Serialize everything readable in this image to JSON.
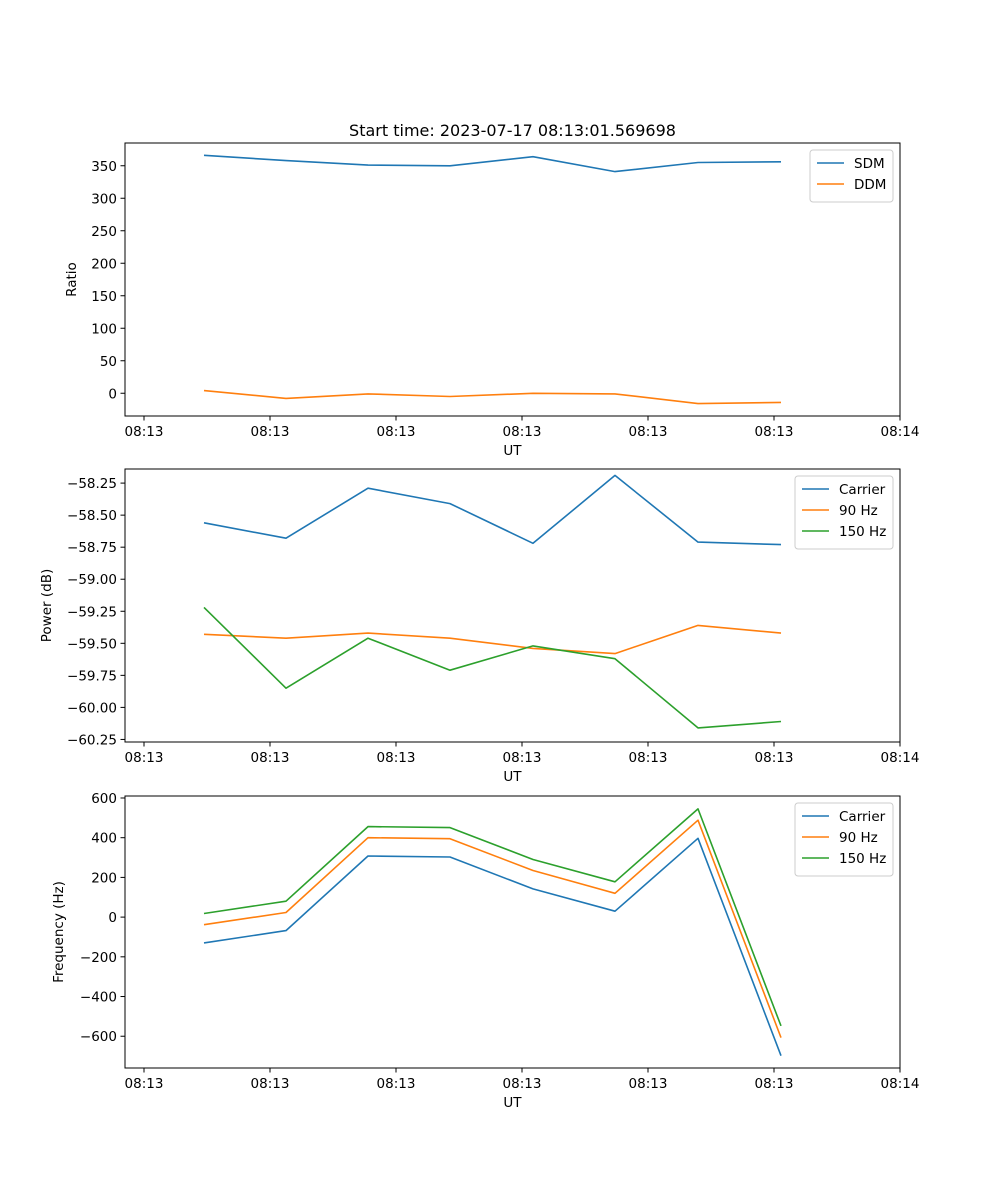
{
  "figure_title": "Start time: 2023-07-17 08:13:01.569698",
  "chart_data": [
    {
      "type": "line",
      "title": "Start time: 2023-07-17 08:13:01.569698",
      "xlabel": "UT",
      "ylabel": "Ratio",
      "x_tick_labels": [
        "08:13",
        "08:13",
        "08:13",
        "08:13",
        "08:13",
        "08:13",
        "08:14"
      ],
      "y_ticks": [
        0,
        50,
        100,
        150,
        200,
        250,
        300,
        350
      ],
      "y_tick_labels": [
        "0",
        "50",
        "100",
        "150",
        "200",
        "250",
        "300",
        "350"
      ],
      "ylim": [
        -35,
        385
      ],
      "legend": "top-right",
      "series": [
        {
          "name": "SDM",
          "color": "#1f77b4",
          "values": [
            366,
            358,
            351,
            350,
            364,
            341,
            355,
            356
          ]
        },
        {
          "name": "DDM",
          "color": "#ff7f0e",
          "values": [
            4,
            -8,
            -1,
            -5,
            0,
            -1,
            -16,
            -14
          ]
        }
      ]
    },
    {
      "type": "line",
      "title": "",
      "xlabel": "UT",
      "ylabel": "Power (dB)",
      "x_tick_labels": [
        "08:13",
        "08:13",
        "08:13",
        "08:13",
        "08:13",
        "08:13",
        "08:14"
      ],
      "y_ticks": [
        -58.25,
        -58.5,
        -58.75,
        -59.0,
        -59.25,
        -59.5,
        -59.75,
        -60.0,
        -60.25
      ],
      "y_tick_labels": [
        "−58.25",
        "−58.50",
        "−58.75",
        "−59.00",
        "−59.25",
        "−59.50",
        "−59.75",
        "−60.00",
        "−60.25"
      ],
      "ylim": [
        -60.27,
        -58.14
      ],
      "legend": "top-right",
      "series": [
        {
          "name": "Carrier",
          "color": "#1f77b4",
          "values": [
            -58.56,
            -58.68,
            -58.29,
            -58.41,
            -58.72,
            -58.19,
            -58.71,
            -58.73
          ]
        },
        {
          "name": "90 Hz",
          "color": "#ff7f0e",
          "values": [
            -59.43,
            -59.46,
            -59.42,
            -59.46,
            -59.54,
            -59.58,
            -59.36,
            -59.42
          ]
        },
        {
          "name": "150 Hz",
          "color": "#2ca02c",
          "values": [
            -59.22,
            -59.85,
            -59.46,
            -59.71,
            -59.52,
            -59.62,
            -60.16,
            -60.11
          ]
        }
      ]
    },
    {
      "type": "line",
      "title": "",
      "xlabel": "UT",
      "ylabel": "Frequency (Hz)",
      "x_tick_labels": [
        "08:13",
        "08:13",
        "08:13",
        "08:13",
        "08:13",
        "08:13",
        "08:14"
      ],
      "y_ticks": [
        -600,
        -400,
        -200,
        0,
        200,
        400,
        600
      ],
      "y_tick_labels": [
        "−600",
        "−400",
        "−200",
        "0",
        "200",
        "400",
        "600"
      ],
      "ylim": [
        -760,
        610
      ],
      "legend": "top-right",
      "series": [
        {
          "name": "Carrier",
          "color": "#1f77b4",
          "values": [
            -130,
            -68,
            308,
            303,
            142,
            30,
            397,
            -698
          ]
        },
        {
          "name": "90 Hz",
          "color": "#ff7f0e",
          "values": [
            -38,
            23,
            400,
            395,
            235,
            120,
            488,
            -607
          ]
        },
        {
          "name": "150 Hz",
          "color": "#2ca02c",
          "values": [
            18,
            80,
            456,
            451,
            290,
            178,
            545,
            -548
          ]
        }
      ]
    }
  ]
}
